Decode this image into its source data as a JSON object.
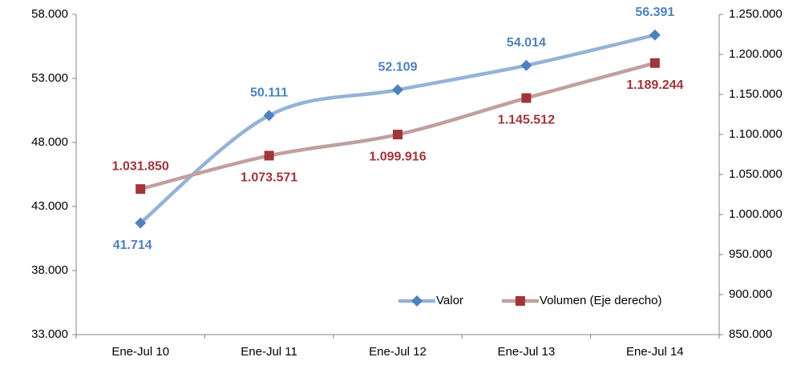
{
  "chart_data": {
    "type": "line",
    "categories": [
      "Ene-Jul 10",
      "Ene-Jul 11",
      "Ene-Jul 12",
      "Ene-Jul 13",
      "Ene-Jul 14"
    ],
    "series": [
      {
        "name": "Valor",
        "color": "#95b3d7",
        "marker_color": "#4f81bd",
        "marker": "diamond",
        "label_color": "#4f81bd",
        "values": [
          41714,
          50111,
          52109,
          54014,
          56391
        ],
        "value_labels": [
          "41.714",
          "50.111",
          "52.109",
          "54.014",
          "56.391"
        ]
      },
      {
        "name": "Volumen (Eje derecho)",
        "color": "#c0a09f",
        "marker_color": "#a0353a",
        "marker": "square",
        "label_color": "#a0353a",
        "axis": "y2",
        "values": [
          1031850,
          1073571,
          1099916,
          1145512,
          1189244
        ],
        "value_labels": [
          "1.031.850",
          "1.073.571",
          "1.099.916",
          "1.145.512",
          "1.189.244"
        ]
      }
    ],
    "ylim": [
      33000,
      58000
    ],
    "yticks": [
      {
        "value": 33000,
        "label": "33.000"
      },
      {
        "value": 38000,
        "label": "38.000"
      },
      {
        "value": 43000,
        "label": "43.000"
      },
      {
        "value": 48000,
        "label": "48.000"
      },
      {
        "value": 53000,
        "label": "53.000"
      },
      {
        "value": 58000,
        "label": "58.000"
      }
    ],
    "y2lim": [
      850000,
      1250000
    ],
    "y2ticks": [
      {
        "value": 850000,
        "label": "850.000"
      },
      {
        "value": 900000,
        "label": "900.000"
      },
      {
        "value": 950000,
        "label": "950.000"
      },
      {
        "value": 1000000,
        "label": "1.000.000"
      },
      {
        "value": 1050000,
        "label": "1.050.000"
      },
      {
        "value": 1100000,
        "label": "1.100.000"
      },
      {
        "value": 1150000,
        "label": "1.150.000"
      },
      {
        "value": 1200000,
        "label": "1.200.000"
      },
      {
        "value": 1250000,
        "label": "1.250.000"
      }
    ],
    "grid": false,
    "smooth": true,
    "legend": "lower right"
  }
}
